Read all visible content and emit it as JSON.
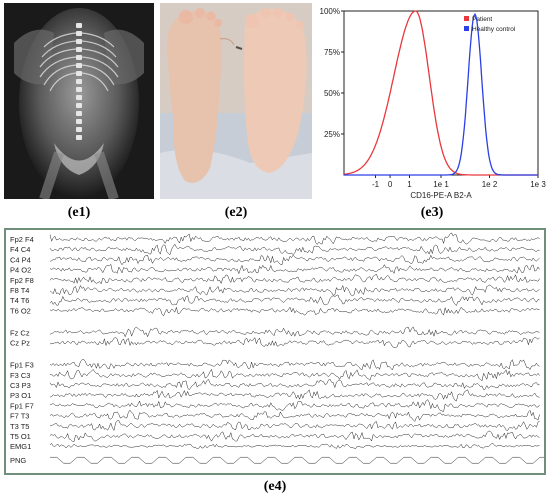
{
  "figure": {
    "captions": {
      "e1": "(e1)",
      "e2": "(e2)",
      "e3": "(e3)",
      "e4": "(e4)"
    }
  },
  "chart_data": {
    "type": "line",
    "title": "",
    "xlabel": "CD16-PE-A B2-A",
    "ylabel": "",
    "x_scale": "log",
    "x_tick_labels": [
      "-1",
      "0",
      "1",
      "1e 1",
      "1e 2",
      "1e 3"
    ],
    "y_tick_labels": [
      "25%",
      "50%",
      "75%",
      "100%"
    ],
    "ylim": [
      0,
      100
    ],
    "legend_position": "top-right",
    "series": [
      {
        "name": "Patient",
        "color": "#e8383d",
        "peak_x": 3,
        "peak_y": 100
      },
      {
        "name": "Healthy control",
        "color": "#2c3fe6",
        "peak_x": 50,
        "peak_y": 98
      }
    ]
  },
  "eeg": {
    "channels": [
      "Fp2 F4",
      "F4 C4",
      "C4 P4",
      "P4 O2",
      "Fp2 F8",
      "F8 T4",
      "T4 T6",
      "T6 O2",
      "Fz Cz",
      "Cz Pz",
      "Fp1 F3",
      "F3 C3",
      "C3 P3",
      "P3 O1",
      "Fp1 F7",
      "F7 T3",
      "T3 T5",
      "T5 O1",
      "EMG1",
      "PNG"
    ],
    "trace_color": "#222222",
    "border_color": "#6f8f7b"
  }
}
